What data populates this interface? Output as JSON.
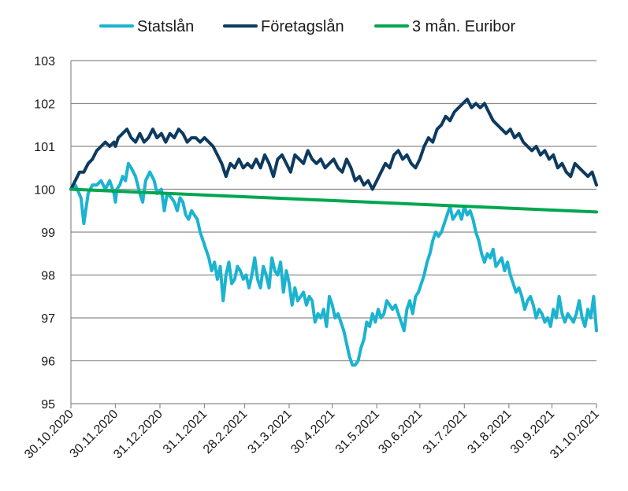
{
  "chart_data": {
    "type": "line",
    "title": "",
    "xlabel": "",
    "ylabel": "",
    "ylim": [
      95,
      103
    ],
    "y_ticks": [
      95,
      96,
      97,
      98,
      99,
      100,
      101,
      102,
      103
    ],
    "x_tick_labels": [
      "30.10.2020",
      "30.11.2020",
      "31.12.2020",
      "31.1.2021",
      "28.2.2021",
      "31.3.2021",
      "30.4.2021",
      "31.5.2021",
      "30.6.2021",
      "31.7.2021",
      "31.8.2021",
      "30.9.2021",
      "31.10.2021"
    ],
    "x_tick_days": [
      0,
      31,
      62,
      93,
      121,
      152,
      182,
      213,
      243,
      274,
      305,
      335,
      366
    ],
    "grid": "horizontal",
    "legend_position": "top",
    "series": [
      {
        "name": "Statslån",
        "color": "#1bb3d0",
        "x": [
          0,
          3,
          7,
          9,
          12,
          15,
          18,
          21,
          24,
          27,
          30,
          31,
          32,
          34,
          36,
          38,
          40,
          42,
          45,
          48,
          50,
          52,
          55,
          58,
          60,
          63,
          65,
          67,
          70,
          72,
          74,
          76,
          78,
          80,
          82,
          84,
          86,
          88,
          90,
          92,
          94,
          96,
          98,
          100,
          102,
          104,
          106,
          108,
          110,
          112,
          114,
          116,
          118,
          120,
          122,
          124,
          126,
          128,
          130,
          132,
          134,
          136,
          138,
          140,
          142,
          144,
          146,
          148,
          150,
          152,
          154,
          156,
          158,
          160,
          162,
          164,
          166,
          168,
          170,
          172,
          174,
          176,
          178,
          180,
          182,
          184,
          186,
          188,
          190,
          192,
          194,
          196,
          198,
          200,
          202,
          204,
          206,
          208,
          210,
          212,
          214,
          216,
          218,
          220,
          222,
          224,
          226,
          228,
          230,
          232,
          234,
          236,
          238,
          240,
          242,
          244,
          246,
          248,
          250,
          252,
          254,
          256,
          258,
          260,
          262,
          264,
          266,
          268,
          270,
          272,
          274,
          276,
          278,
          280,
          282,
          284,
          286,
          288,
          290,
          292,
          294,
          296,
          298,
          300,
          302,
          304,
          306,
          308,
          310,
          312,
          314,
          316,
          318,
          320,
          322,
          324,
          326,
          328,
          330,
          332,
          334,
          336,
          338,
          340,
          342,
          344,
          346,
          348,
          350,
          352,
          354,
          356,
          358,
          360,
          362,
          364,
          366
        ],
        "y": [
          100.0,
          100.1,
          99.8,
          99.2,
          99.9,
          100.1,
          100.1,
          100.2,
          100.0,
          100.2,
          99.9,
          99.7,
          100.0,
          100.1,
          100.3,
          100.2,
          100.6,
          100.5,
          100.3,
          99.9,
          99.7,
          100.2,
          100.4,
          100.2,
          99.9,
          100.0,
          99.5,
          99.9,
          99.8,
          99.7,
          99.5,
          99.8,
          99.7,
          99.4,
          99.3,
          99.5,
          99.4,
          99.3,
          99.0,
          98.8,
          98.6,
          98.4,
          98.1,
          98.3,
          97.9,
          98.2,
          97.4,
          98.0,
          98.3,
          97.8,
          97.9,
          98.2,
          98.1,
          97.9,
          98.0,
          97.7,
          98.0,
          98.4,
          97.9,
          97.7,
          98.2,
          98.0,
          97.7,
          98.4,
          98.1,
          98.0,
          98.3,
          97.6,
          98.1,
          97.8,
          97.3,
          97.7,
          97.4,
          97.5,
          97.6,
          97.3,
          97.5,
          97.4,
          96.9,
          97.1,
          97.0,
          97.2,
          96.8,
          97.5,
          97.3,
          97.0,
          97.1,
          96.9,
          96.7,
          96.4,
          96.1,
          95.9,
          95.9,
          96.0,
          96.3,
          96.5,
          96.9,
          96.8,
          97.1,
          96.9,
          97.2,
          97.0,
          97.1,
          97.4,
          97.3,
          97.2,
          97.3,
          97.1,
          96.9,
          96.7,
          97.2,
          97.4,
          97.1,
          97.5,
          97.6,
          97.8,
          98.0,
          98.3,
          98.5,
          98.8,
          99.0,
          98.9,
          99.0,
          99.2,
          99.4,
          99.6,
          99.3,
          99.4,
          99.5,
          99.3,
          99.6,
          99.4,
          99.5,
          99.3,
          99.0,
          98.8,
          98.5,
          98.3,
          98.5,
          98.4,
          98.6,
          98.2,
          98.3,
          98.4,
          98.1,
          98.3,
          98.0,
          97.8,
          97.6,
          97.7,
          97.5,
          97.2,
          97.4,
          97.5,
          97.3,
          97.0,
          97.2,
          97.1,
          96.9,
          97.0,
          96.8,
          97.2,
          97.0,
          97.5,
          97.1,
          96.9,
          97.1,
          97.0,
          96.9,
          97.1,
          97.4,
          97.0,
          96.8,
          97.2,
          97.0,
          97.5,
          96.7
        ]
      },
      {
        "name": "Företagslån",
        "color": "#0d3a5e",
        "x": [
          0,
          3,
          6,
          9,
          12,
          15,
          18,
          21,
          24,
          27,
          30,
          31,
          33,
          36,
          39,
          42,
          45,
          48,
          51,
          54,
          57,
          60,
          63,
          66,
          69,
          72,
          75,
          78,
          81,
          84,
          87,
          90,
          93,
          96,
          99,
          102,
          105,
          108,
          111,
          114,
          117,
          120,
          123,
          126,
          129,
          132,
          135,
          138,
          141,
          144,
          147,
          150,
          153,
          156,
          159,
          162,
          165,
          168,
          171,
          174,
          177,
          180,
          183,
          186,
          189,
          192,
          195,
          198,
          201,
          204,
          207,
          210,
          213,
          216,
          219,
          222,
          225,
          228,
          231,
          234,
          237,
          240,
          243,
          246,
          249,
          252,
          255,
          258,
          261,
          264,
          267,
          270,
          273,
          276,
          279,
          282,
          285,
          288,
          291,
          294,
          297,
          300,
          303,
          306,
          309,
          312,
          315,
          318,
          321,
          324,
          327,
          330,
          333,
          336,
          339,
          342,
          345,
          348,
          351,
          354,
          357,
          360,
          363,
          366
        ],
        "y": [
          100.0,
          100.2,
          100.4,
          100.4,
          100.6,
          100.7,
          100.9,
          101.0,
          101.1,
          101.0,
          101.1,
          101.0,
          101.2,
          101.3,
          101.4,
          101.2,
          101.1,
          101.3,
          101.1,
          101.2,
          101.4,
          101.2,
          101.3,
          101.1,
          101.3,
          101.2,
          101.4,
          101.3,
          101.1,
          101.2,
          101.2,
          101.1,
          101.2,
          101.1,
          101.0,
          100.8,
          100.6,
          100.3,
          100.6,
          100.5,
          100.7,
          100.5,
          100.6,
          100.5,
          100.7,
          100.5,
          100.8,
          100.6,
          100.3,
          100.7,
          100.8,
          100.6,
          100.4,
          100.8,
          100.7,
          100.6,
          100.9,
          100.7,
          100.6,
          100.7,
          100.5,
          100.6,
          100.7,
          100.5,
          100.4,
          100.7,
          100.5,
          100.2,
          100.3,
          100.1,
          100.2,
          100.0,
          100.2,
          100.4,
          100.6,
          100.5,
          100.8,
          100.9,
          100.7,
          100.8,
          100.6,
          100.5,
          100.7,
          101.0,
          101.2,
          101.1,
          101.4,
          101.5,
          101.7,
          101.6,
          101.8,
          101.9,
          102.0,
          102.1,
          101.9,
          102.0,
          101.9,
          102.0,
          101.8,
          101.6,
          101.5,
          101.4,
          101.3,
          101.4,
          101.2,
          101.3,
          101.1,
          101.0,
          100.9,
          101.0,
          100.8,
          100.9,
          100.7,
          100.8,
          100.5,
          100.6,
          100.4,
          100.3,
          100.6,
          100.5,
          100.4,
          100.3,
          100.4,
          100.1
        ]
      },
      {
        "name": "3 mån. Euribor",
        "color": "#00a64f",
        "x": [
          0,
          366
        ],
        "y": [
          100.0,
          99.47
        ]
      }
    ]
  }
}
